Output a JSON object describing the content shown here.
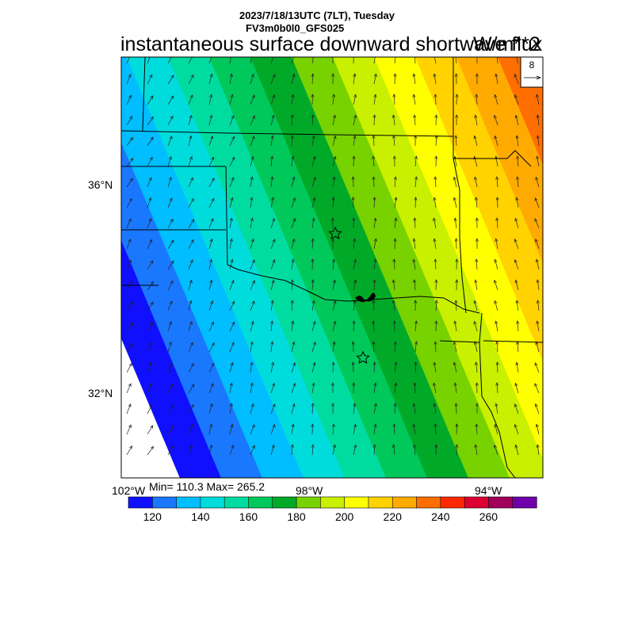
{
  "header": {
    "date_line": "2023/7/18/13UTC (7LT), Tuesday",
    "model_line": "FV3m0b0l0_GFS025",
    "title": "instantaneous surface downward shortwave flux",
    "units": "W/m**2"
  },
  "map": {
    "lat_labels": [
      "36°N",
      "32°N"
    ],
    "lon_labels": [
      "102°W",
      "98°W",
      "94°W"
    ],
    "min_max": "Min= 110.3 Max= 265.2",
    "field_min": 110.3,
    "field_max": 265.2,
    "vector_reference": {
      "label": "8",
      "icon": "right-arrow-icon"
    },
    "markers": [
      "star-icon",
      "star-icon"
    ]
  },
  "colorbar": {
    "levels": [
      120,
      130,
      140,
      150,
      160,
      170,
      180,
      190,
      200,
      210,
      220,
      230,
      240,
      250,
      260
    ],
    "tick_labels": [
      "120",
      "140",
      "160",
      "180",
      "200",
      "220",
      "240",
      "260"
    ],
    "colors": [
      "#1010ff",
      "#1a78ff",
      "#00beff",
      "#00dcdc",
      "#00dca0",
      "#00c85a",
      "#00aa28",
      "#78d200",
      "#c8f000",
      "#ffff00",
      "#ffd200",
      "#ffaa00",
      "#ff6e00",
      "#ff2800",
      "#dc0032",
      "#a0005a",
      "#6e00aa"
    ]
  }
}
